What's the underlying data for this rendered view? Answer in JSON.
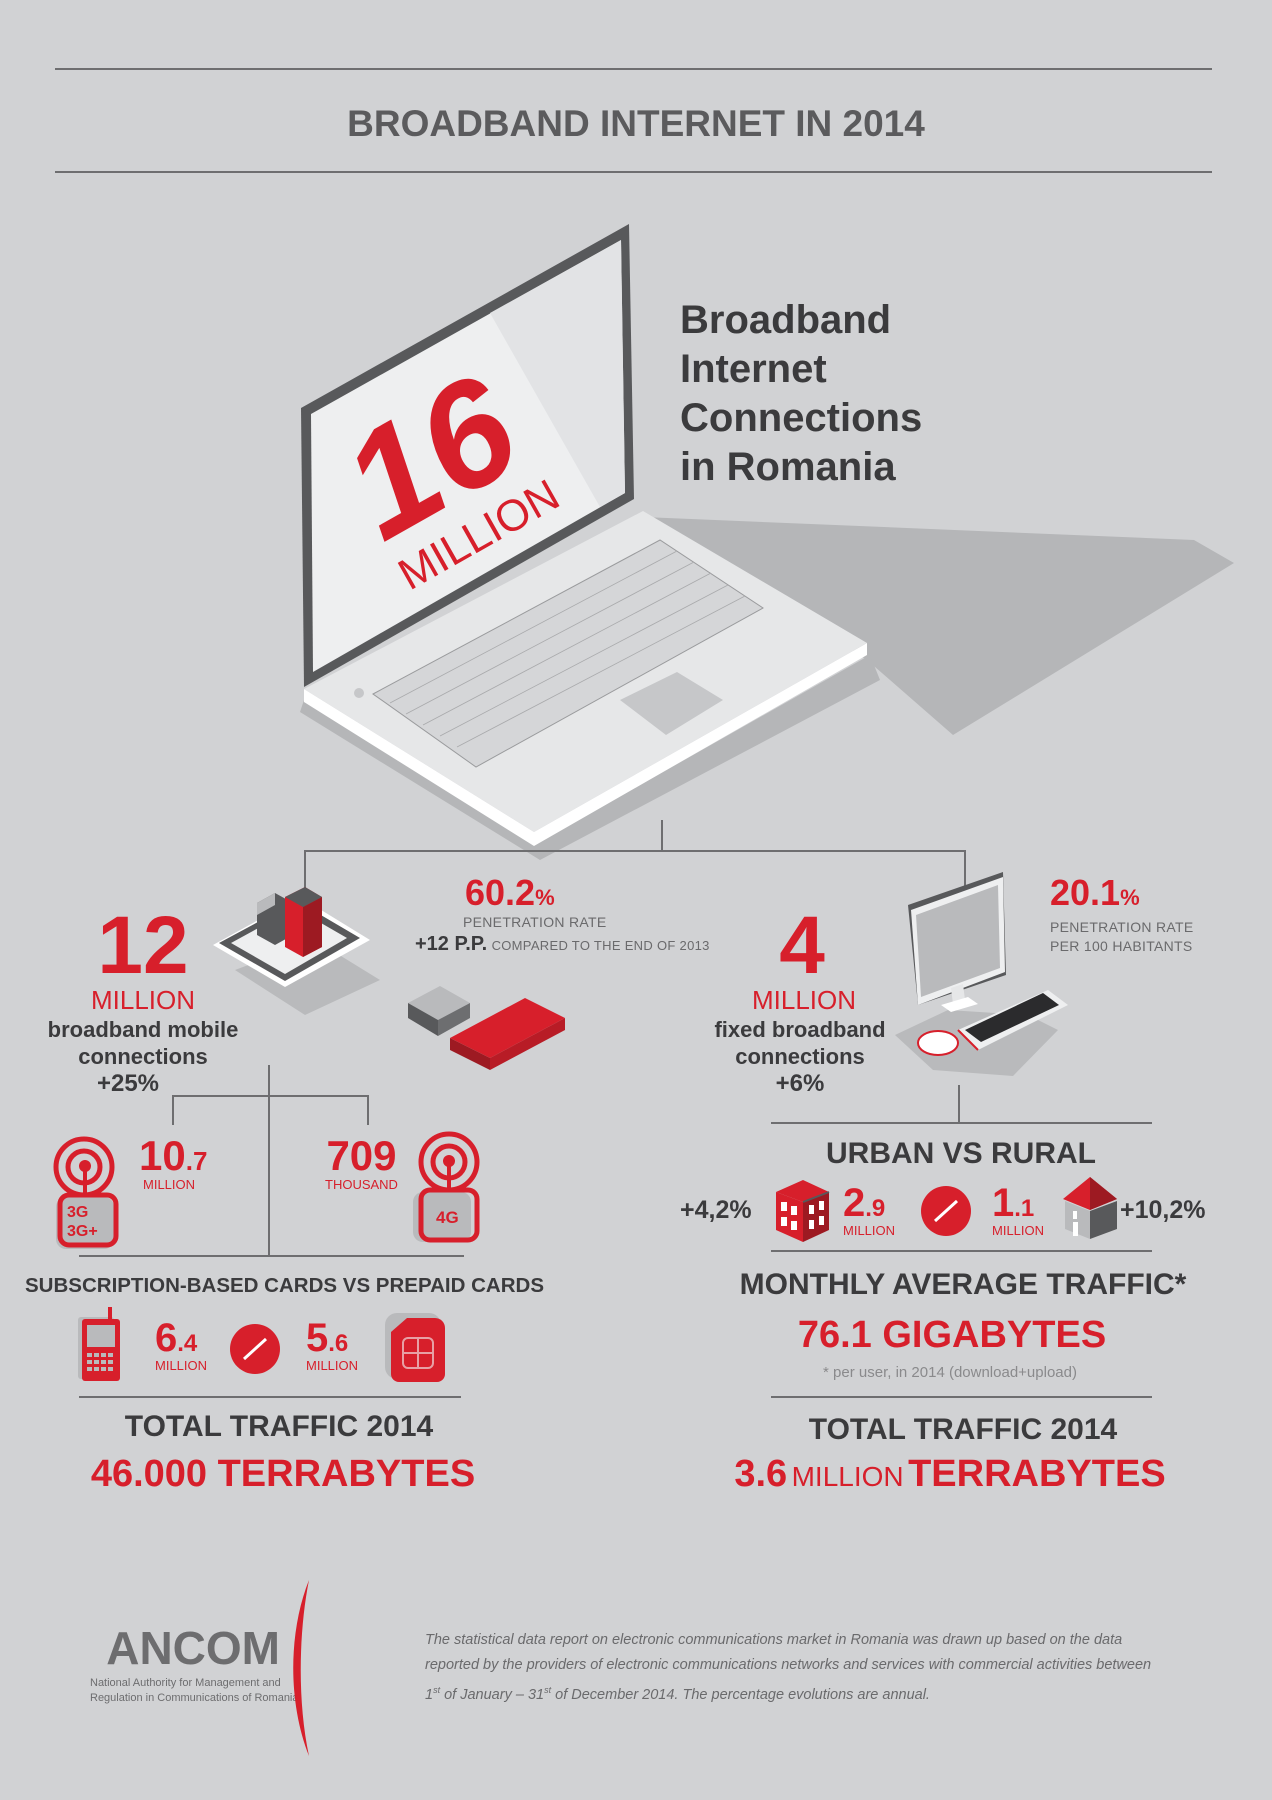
{
  "header": {
    "title": "BROADBAND INTERNET IN 2014"
  },
  "hero": {
    "screen_number": "16",
    "screen_unit": "MILLION",
    "heading_lines": [
      "Broadband",
      "Internet",
      "Connections",
      "in Romania"
    ]
  },
  "mobile": {
    "value": "12",
    "unit": "MILLION",
    "desc_lines": [
      "broadband mobile",
      "connections"
    ],
    "growth": "+25%",
    "penetration_value": "60.2",
    "penetration_pct": "%",
    "penetration_label": "PENETRATION RATE",
    "pp_change": "+12 P.P.",
    "pp_note": "COMPARED TO THE END OF 2013",
    "tech": [
      {
        "int": "10",
        "dec": ".7",
        "unit": "MILLION",
        "icon_labels": [
          "3G",
          "3G+"
        ]
      },
      {
        "int": "709",
        "dec": "",
        "unit": "THOUSAND",
        "icon_labels": [
          "4G"
        ]
      }
    ],
    "cards_heading": "SUBSCRIPTION-BASED CARDS VS PREPAID CARDS",
    "cards": [
      {
        "int": "6",
        "dec": ".4",
        "unit": "MILLION"
      },
      {
        "int": "5",
        "dec": ".6",
        "unit": "MILLION"
      }
    ],
    "traffic_heading": "TOTAL TRAFFIC 2014",
    "traffic_value": "46.000 TERRABYTES"
  },
  "fixed": {
    "value": "4",
    "unit": "MILLION",
    "desc_lines": [
      "fixed broadband",
      "connections"
    ],
    "growth": "+6%",
    "penetration_value": "20.1",
    "penetration_pct": "%",
    "penetration_label_lines": [
      "PENETRATION RATE",
      "PER 100 HABITANTS"
    ],
    "urban_rural_heading": "URBAN VS RURAL",
    "urban": {
      "growth": "+4,2%",
      "int": "2",
      "dec": ".9",
      "unit": "MILLION"
    },
    "rural": {
      "growth": "+10,2%",
      "int": "1",
      "dec": ".1",
      "unit": "MILLION"
    },
    "monthly_heading": "MONTHLY AVERAGE TRAFFIC*",
    "monthly_value": "76.1 GIGABYTES",
    "monthly_note": "* per user, in 2014 (download+upload)",
    "traffic_heading": "TOTAL TRAFFIC 2014",
    "traffic_value_num": "3.6",
    "traffic_value_mid": "MILLION",
    "traffic_value_unit": "TERRABYTES"
  },
  "footer": {
    "logo": "ANCOM",
    "logo_sub_lines": [
      "National Authority for Management and",
      "Regulation in Communications of Romania"
    ],
    "disclaimer_lines": [
      "The statistical data report on electronic communications market in Romania was drawn up based on the data",
      "reported by the providers of electronic communications networks and services with commercial activities between"
    ],
    "disclaimer_last": {
      "a": "1",
      "a_sup": "st",
      "b": " of January – 31",
      "b_sup": "st",
      "c": " of December 2014. The percentage evolutions are annual."
    }
  },
  "colors": {
    "accent": "#d71f2b",
    "background": "#d1d2d4",
    "text": "#3b3b3d"
  }
}
